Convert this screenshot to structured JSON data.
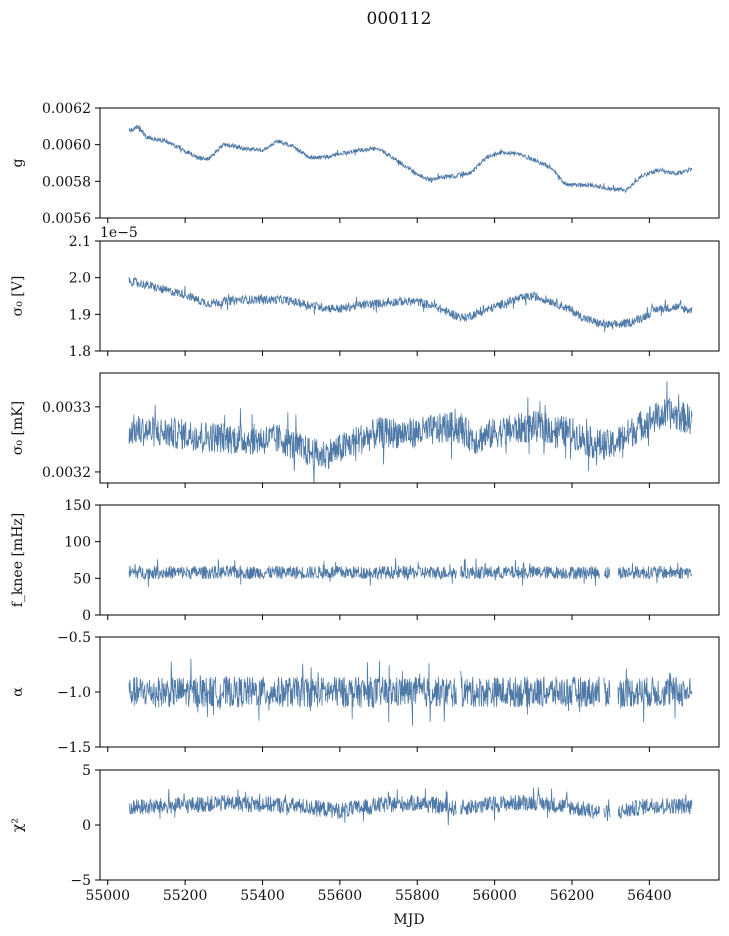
{
  "figure": {
    "title": "000112",
    "xlabel": "MJD",
    "xticks": [
      "55000",
      "55200",
      "55400",
      "55600",
      "55800",
      "56000",
      "56200",
      "56400"
    ],
    "xlim": [
      54980,
      56580
    ],
    "data_xlim": [
      55055,
      56510
    ],
    "line_color": "#4e79a7"
  },
  "chart_data": [
    {
      "type": "line",
      "ylabel": "g",
      "ylim": [
        0.0056,
        0.0062
      ],
      "yticks": [
        0.0056,
        0.0058,
        0.006,
        0.0062
      ],
      "ytick_labels": [
        "0.0056",
        "0.0058",
        "0.0060",
        "0.0062"
      ],
      "offset_text": "",
      "noise": 1.2e-05,
      "gaps": [],
      "baseline": {
        "x": [
          55060,
          55080,
          55100,
          55150,
          55200,
          55230,
          55260,
          55300,
          55350,
          55400,
          55440,
          55480,
          55520,
          55560,
          55600,
          55650,
          55700,
          55750,
          55800,
          55830,
          55860,
          55900,
          55940,
          55980,
          56020,
          56060,
          56100,
          56150,
          56180,
          56200,
          56250,
          56300,
          56340,
          56380,
          56420,
          56470,
          56510
        ],
        "y": [
          0.00608,
          0.0061,
          0.00604,
          0.00602,
          0.00597,
          0.00593,
          0.00592,
          0.006,
          0.00598,
          0.00597,
          0.00602,
          0.00599,
          0.00593,
          0.00593,
          0.00595,
          0.00597,
          0.00598,
          0.00591,
          0.00584,
          0.00581,
          0.00582,
          0.00583,
          0.00585,
          0.00593,
          0.00596,
          0.00595,
          0.00592,
          0.00587,
          0.00579,
          0.00578,
          0.00578,
          0.00576,
          0.00575,
          0.00583,
          0.00586,
          0.00584,
          0.00587
        ]
      }
    },
    {
      "type": "line",
      "ylabel": "σ₀ [V]",
      "ylim": [
        1.8e-05,
        2.1e-05
      ],
      "yticks": [
        1.8e-05,
        1.9e-05,
        2e-05,
        2.1e-05
      ],
      "ytick_labels": [
        "1.8",
        "1.9",
        "2.0",
        "2.1"
      ],
      "offset_text": "1e−5",
      "noise": 1.2e-07,
      "gaps": [],
      "baseline": {
        "x": [
          55060,
          55100,
          55150,
          55200,
          55230,
          55260,
          55300,
          55350,
          55400,
          55450,
          55500,
          55550,
          55600,
          55650,
          55700,
          55750,
          55800,
          55850,
          55880,
          55920,
          55960,
          56000,
          56050,
          56100,
          56150,
          56200,
          56230,
          56270,
          56300,
          56340,
          56380,
          56420,
          56470,
          56510
        ],
        "y": [
          1.99e-05,
          1.98e-05,
          1.965e-05,
          1.955e-05,
          1.94e-05,
          1.93e-05,
          1.935e-05,
          1.94e-05,
          1.94e-05,
          1.94e-05,
          1.93e-05,
          1.92e-05,
          1.915e-05,
          1.925e-05,
          1.93e-05,
          1.935e-05,
          1.935e-05,
          1.92e-05,
          1.905e-05,
          1.89e-05,
          1.905e-05,
          1.92e-05,
          1.94e-05,
          1.95e-05,
          1.935e-05,
          1.91e-05,
          1.89e-05,
          1.875e-05,
          1.87e-05,
          1.875e-05,
          1.89e-05,
          1.915e-05,
          1.92e-05,
          1.91e-05
        ]
      }
    },
    {
      "type": "line",
      "ylabel": "σ₀ [mK]",
      "ylim": [
        0.003183,
        0.003352
      ],
      "yticks": [
        0.0032,
        0.0033
      ],
      "ytick_labels": [
        "0.0032",
        "0.0033"
      ],
      "offset_text": "",
      "noise": 2.4e-05,
      "gaps": [],
      "baseline": {
        "x": [
          55060,
          55150,
          55250,
          55350,
          55450,
          55500,
          55550,
          55600,
          55650,
          55700,
          55800,
          55900,
          55950,
          56000,
          56100,
          56200,
          56250,
          56300,
          56350,
          56400,
          56450,
          56510
        ],
        "y": [
          0.003265,
          0.00326,
          0.003255,
          0.00325,
          0.00325,
          0.003235,
          0.003225,
          0.003235,
          0.00325,
          0.00326,
          0.00326,
          0.00327,
          0.00325,
          0.00326,
          0.00327,
          0.00326,
          0.003245,
          0.00324,
          0.00326,
          0.00328,
          0.00329,
          0.00328
        ]
      }
    },
    {
      "type": "line",
      "ylabel": "f_knee [mHz]",
      "ylim": [
        0,
        150
      ],
      "yticks": [
        0,
        50,
        100,
        150
      ],
      "ytick_labels": [
        "0",
        "50",
        "100",
        "150"
      ],
      "offset_text": "",
      "noise": 9,
      "gaps": [
        [
          55902,
          55912
        ],
        [
          56272,
          56282
        ],
        [
          56298,
          56318
        ]
      ],
      "baseline": {
        "x": [
          55060,
          56510
        ],
        "y": [
          58,
          58
        ]
      }
    },
    {
      "type": "line",
      "ylabel": "α",
      "ylim": [
        -1.5,
        -0.5
      ],
      "yticks": [
        -1.5,
        -1.0,
        -0.5
      ],
      "ytick_labels": [
        "−1.5",
        "−1.0",
        "−0.5"
      ],
      "offset_text": "",
      "noise": 0.14,
      "gaps": [
        [
          55902,
          55912
        ],
        [
          56272,
          56282
        ],
        [
          56298,
          56318
        ]
      ],
      "baseline": {
        "x": [
          55060,
          56510
        ],
        "y": [
          -1.0,
          -1.0
        ]
      }
    },
    {
      "type": "line",
      "ylabel": "χ²",
      "ylim": [
        -5,
        5
      ],
      "yticks": [
        -5,
        0,
        5
      ],
      "ytick_labels": [
        "−5",
        "0",
        "5"
      ],
      "offset_text": "",
      "noise": 0.75,
      "gaps": [
        [
          55902,
          55912
        ],
        [
          56272,
          56282
        ],
        [
          56298,
          56318
        ]
      ],
      "baseline": {
        "x": [
          55060,
          55200,
          55300,
          55400,
          55500,
          55600,
          55700,
          55800,
          55900,
          56000,
          56100,
          56200,
          56300,
          56400,
          56510
        ],
        "y": [
          1.6,
          1.8,
          2.0,
          1.9,
          1.7,
          1.3,
          1.8,
          2.0,
          1.5,
          1.9,
          2.1,
          1.6,
          1.0,
          1.8,
          1.7
        ]
      }
    }
  ]
}
